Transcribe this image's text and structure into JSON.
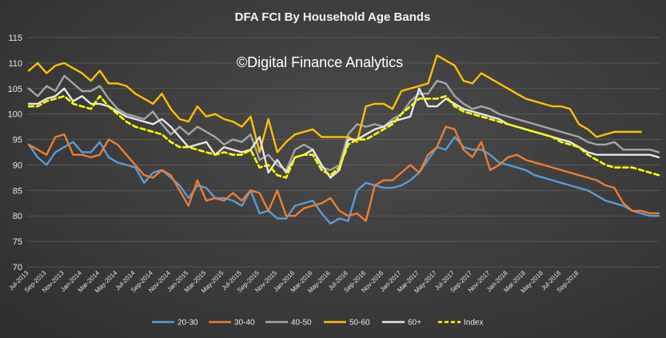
{
  "chart_data": {
    "type": "line",
    "title": "DFA FCI By Household Age Bands",
    "watermark": "©Digital Finance Analytics",
    "xlabel": "",
    "ylabel": "",
    "ylim": [
      70,
      115
    ],
    "yticks": [
      70,
      75,
      80,
      85,
      90,
      95,
      100,
      105,
      110,
      115
    ],
    "grid": true,
    "legend_position": "bottom",
    "tick_labels": [
      "Jul-2013",
      "Sep-2013",
      "Nov-2013",
      "Jan-2014",
      "Mar-2014",
      "May-2014",
      "Jul-2014",
      "Sep-2014",
      "Nov-2014",
      "Jan-2015",
      "Mar-2015",
      "May-2015",
      "Jul-2015",
      "Sep-2015",
      "Nov-2015",
      "Jan-2016",
      "Mar-2016",
      "May-2016",
      "Jul-2016",
      "Sep-2016",
      "Nov-2016",
      "Jan-2017",
      "Mar-2017",
      "May-2017",
      "Jul-2017",
      "Sep-2017",
      "Nov-2017",
      "Jan-2018",
      "Mar-2018",
      "May-2018",
      "Jul-2018",
      "Sep-2018"
    ],
    "series": [
      {
        "name": "20-30",
        "color": "#5b9bd5",
        "dashed": false,
        "values": [
          94,
          91.5,
          90,
          92.5,
          93.5,
          94.5,
          92.5,
          92.5,
          94.5,
          91.5,
          90.5,
          90,
          89.5,
          86.5,
          88.5,
          89,
          87.5,
          86,
          83.5,
          86,
          85.5,
          83.5,
          83.5,
          83,
          82,
          85,
          80.5,
          81,
          79.5,
          79.5,
          82,
          82.5,
          83,
          80.5,
          78.5,
          79.5,
          79,
          85,
          86.5,
          86,
          85.5,
          85.5,
          86,
          87,
          88.5,
          91,
          93.5,
          93,
          95.5,
          93.5,
          93,
          93,
          92,
          90.5,
          90,
          89.5,
          89,
          88,
          87.5,
          87,
          86.5,
          86,
          85.5,
          85,
          84,
          83,
          82.5,
          82,
          81,
          80.5,
          80,
          80
        ]
      },
      {
        "name": "30-40",
        "color": "#ed7d31",
        "dashed": false,
        "values": [
          94,
          93,
          92,
          95.5,
          96,
          92,
          92,
          91.5,
          92,
          95,
          94,
          92,
          90,
          88,
          87.5,
          89,
          88,
          85,
          82,
          87,
          83,
          83.5,
          83,
          84.5,
          83,
          85,
          84.5,
          81,
          85,
          80,
          80,
          81.5,
          82,
          82.5,
          83.5,
          81,
          80,
          80.5,
          79,
          86,
          87,
          87,
          88.5,
          90,
          88.5,
          92,
          93.5,
          97.5,
          97,
          93,
          91.5,
          94.5,
          89,
          90,
          91.5,
          92,
          91,
          90.5,
          90,
          89.5,
          89,
          88.5,
          88,
          87.5,
          87,
          86,
          85.5,
          82.5,
          81,
          81,
          80.5,
          80.5
        ]
      },
      {
        "name": "40-50",
        "color": "#a5a5a5",
        "dashed": false,
        "values": [
          105,
          103.5,
          105.5,
          104.5,
          107.5,
          106,
          104.5,
          104.5,
          105.5,
          103,
          101,
          100,
          99.5,
          99,
          100.5,
          98,
          96,
          97.5,
          96,
          97.5,
          96.5,
          95.5,
          94,
          95,
          94.5,
          96,
          91,
          92,
          90,
          89,
          93,
          94,
          93,
          89.5,
          89,
          90,
          96,
          98,
          97.5,
          98,
          97.5,
          99,
          100,
          102.5,
          104,
          104,
          106.5,
          106,
          103.5,
          102,
          101,
          101.5,
          101,
          100,
          99.5,
          99,
          98.5,
          98,
          97.5,
          97,
          96.5,
          96,
          95.5,
          94.5,
          94,
          94,
          94.5,
          93,
          93,
          93,
          93,
          92.5
        ]
      },
      {
        "name": "50-60",
        "color": "#ffc000",
        "dashed": false,
        "values": [
          108.5,
          110,
          108,
          109.5,
          110,
          109,
          108,
          106.5,
          108.5,
          106,
          106,
          105.5,
          104,
          103,
          102,
          104,
          101,
          99,
          98.5,
          101.5,
          99.5,
          100,
          99,
          98.5,
          97.5,
          99.5,
          92.5,
          99,
          92.5,
          94.5,
          96,
          96.5,
          97,
          95.5,
          95.5,
          95.5,
          95.5,
          94.5,
          101.5,
          102,
          102,
          101,
          104.5,
          105,
          105.5,
          106,
          111.5,
          110.5,
          109.5,
          106.5,
          106,
          108,
          107,
          106,
          105,
          104,
          103,
          102.5,
          102,
          101.5,
          101.5,
          101,
          98,
          97,
          95.5,
          96,
          96.5,
          96.5,
          96.5,
          96.5
        ]
      },
      {
        "name": "60+",
        "color": "#e7e6e6",
        "dashed": false,
        "values": [
          102,
          102,
          103,
          103.5,
          105,
          102.5,
          103.5,
          102,
          102,
          101.5,
          100.5,
          99.5,
          99,
          98.5,
          98,
          99,
          97.5,
          95.5,
          93.5,
          94,
          94.5,
          92,
          93.5,
          93,
          92.5,
          93,
          95.5,
          88.5,
          91,
          88.5,
          91.5,
          92,
          93,
          90,
          87.5,
          89,
          95,
          95,
          96,
          97,
          97.5,
          98.5,
          99,
          99.5,
          105,
          101.5,
          101.5,
          103,
          102,
          101,
          100.5,
          100,
          99.5,
          99,
          98,
          97.5,
          97,
          96.5,
          96,
          95.5,
          95,
          94.5,
          93.5,
          92.5,
          92,
          92,
          92,
          92,
          92,
          92,
          92,
          91.5
        ]
      },
      {
        "name": "Index",
        "color": "#ffff00",
        "dashed": true,
        "values": [
          101.5,
          101.5,
          102.5,
          103,
          103.5,
          102,
          101.5,
          101,
          103.5,
          101.5,
          100,
          98.5,
          97.5,
          97,
          96.5,
          96,
          94.5,
          93.5,
          93.5,
          93,
          92.5,
          92,
          92.5,
          92,
          92,
          93,
          89.5,
          90,
          88,
          87.5,
          91.5,
          92,
          92,
          89,
          88,
          89.5,
          94,
          95,
          95,
          96,
          97,
          98,
          100,
          101.5,
          103,
          103,
          103,
          103.5,
          101.5,
          100.5,
          100,
          99.5,
          99,
          98.5,
          98,
          97.5,
          97,
          96.5,
          96,
          95.5,
          94.5,
          94,
          93.5,
          92,
          91,
          90,
          89.5,
          89.5,
          89.5,
          89,
          88.5,
          88
        ]
      }
    ]
  }
}
